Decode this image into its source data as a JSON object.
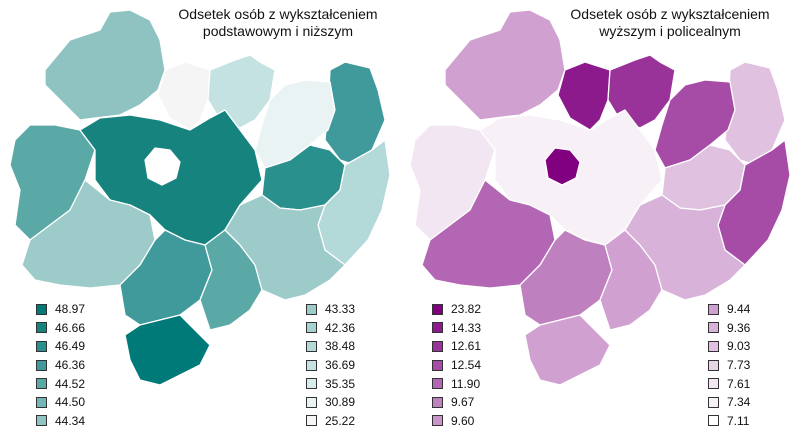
{
  "maps": [
    {
      "title_line1": "Odsetek osób z wykształceniem",
      "title_line2": "podstawowym i niższym",
      "legend_left": [
        {
          "label": "48.97",
          "color": "#007a78"
        },
        {
          "label": "46.66",
          "color": "#17837f"
        },
        {
          "label": "46.49",
          "color": "#2a908d"
        },
        {
          "label": "46.36",
          "color": "#40999a"
        },
        {
          "label": "44.52",
          "color": "#5aa9a6"
        },
        {
          "label": "44.50",
          "color": "#74b6b5"
        },
        {
          "label": "44.34",
          "color": "#8ec3c1"
        }
      ],
      "legend_right": [
        {
          "label": "43.33",
          "color": "#9ccbc9"
        },
        {
          "label": "42.36",
          "color": "#a6d2d0"
        },
        {
          "label": "38.48",
          "color": "#b3d9d8"
        },
        {
          "label": "36.69",
          "color": "#c4e2e1"
        },
        {
          "label": "35.35",
          "color": "#d8ecec"
        },
        {
          "label": "30.89",
          "color": "#eaf3f3"
        },
        {
          "label": "25.22",
          "color": "#f5f5f5"
        }
      ]
    },
    {
      "title_line1": "Odsetek osób z wykształceniem",
      "title_line2": "wyższym i policealnym",
      "legend_left": [
        {
          "label": "23.82",
          "color": "#800080"
        },
        {
          "label": "14.33",
          "color": "#8c1a8c"
        },
        {
          "label": "12.61",
          "color": "#993399"
        },
        {
          "label": "12.54",
          "color": "#a64ca6"
        },
        {
          "label": "11.90",
          "color": "#b366b3"
        },
        {
          "label": "9.67",
          "color": "#bf80bf"
        },
        {
          "label": "9.60",
          "color": "#c994c9"
        }
      ],
      "legend_right": [
        {
          "label": "9.44",
          "color": "#d0a0d0"
        },
        {
          "label": "9.36",
          "color": "#d8b2d8"
        },
        {
          "label": "9.03",
          "color": "#e0c2e0"
        },
        {
          "label": "7.73",
          "color": "#e8d4e8"
        },
        {
          "label": "7.61",
          "color": "#f2e6f2"
        },
        {
          "label": "7.34",
          "color": "#f7f0f7"
        },
        {
          "label": "7.11",
          "color": "#ffffff"
        }
      ]
    }
  ]
}
